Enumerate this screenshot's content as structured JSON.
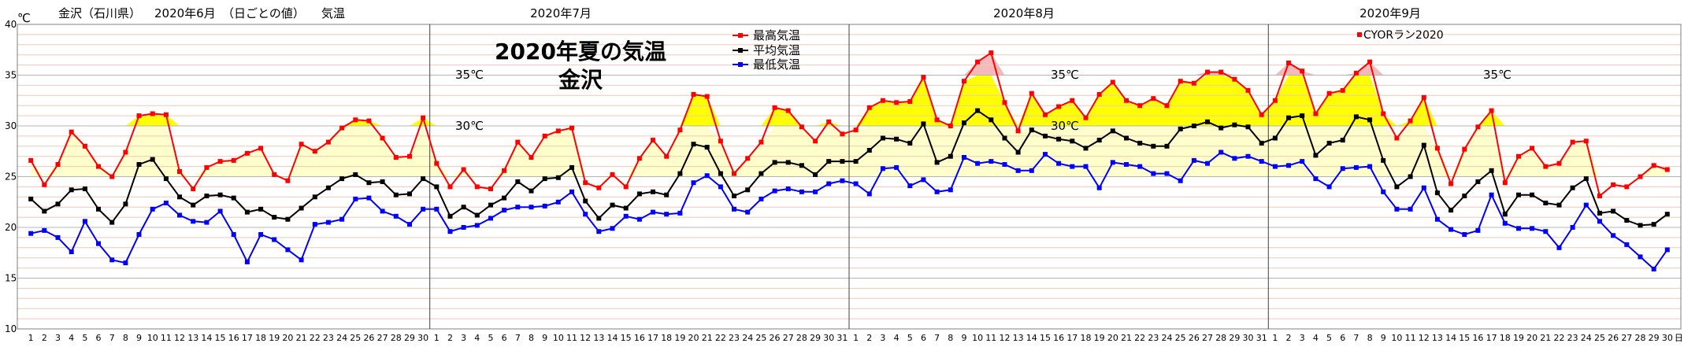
{
  "header": {
    "unit": "℃",
    "location": "金沢（石川県）",
    "month_label": "2020年6月",
    "daily_note": "（日ごとの値）",
    "metric": "気温"
  },
  "month_labels": [
    "2020年7月",
    "2020年8月",
    "2020年9月"
  ],
  "title": {
    "line1": "2020年夏の気温",
    "line2": "金沢"
  },
  "marks": {
    "m35a": "35℃",
    "m30a": "30℃",
    "m35b": "35℃",
    "m30b": "30℃",
    "m35c": "35℃"
  },
  "legend": {
    "max": "最高気温",
    "avg": "平均気温",
    "min": "最低気温",
    "credit": "CYORラン2020"
  },
  "day_suffix": "日",
  "colors": {
    "max": "#ff0000",
    "avg": "#000000",
    "min": "#0000ff",
    "fill_pale": "#ffffcc",
    "fill_yellow": "#ffff00",
    "fill_pink": "#f4b9b9",
    "minor_grid": "#f0c8b4",
    "major_grid": "#b4b4b4"
  },
  "chart_data": {
    "type": "line",
    "x_unit": "day",
    "months": [
      {
        "name": "2020年6月",
        "days": 30
      },
      {
        "name": "2020年7月",
        "days": 31
      },
      {
        "name": "2020年8月",
        "days": 31
      },
      {
        "name": "2020年9月",
        "days": 30
      }
    ],
    "ylim": [
      10,
      40
    ],
    "yticks": [
      10,
      15,
      20,
      25,
      30,
      35,
      40
    ],
    "series": [
      {
        "name": "最高気温",
        "key": "max",
        "values": [
          26.6,
          24.2,
          26.2,
          29.4,
          28.0,
          26.0,
          25.0,
          27.4,
          31.0,
          31.2,
          31.1,
          25.5,
          23.8,
          25.9,
          26.5,
          26.6,
          27.3,
          27.8,
          25.2,
          24.6,
          28.2,
          27.5,
          28.4,
          29.8,
          30.6,
          30.5,
          28.8,
          26.9,
          27.0,
          30.8,
          26.3,
          24.0,
          25.7,
          24.0,
          23.8,
          25.6,
          28.4,
          26.9,
          29.0,
          29.5,
          29.8,
          24.4,
          23.9,
          25.2,
          24.0,
          26.8,
          28.6,
          27.0,
          29.6,
          33.1,
          32.9,
          28.5,
          25.3,
          26.8,
          28.4,
          31.8,
          31.5,
          29.9,
          28.5,
          30.4,
          29.2,
          29.6,
          31.8,
          32.5,
          32.3,
          32.4,
          34.8,
          30.6,
          30.0,
          34.4,
          36.3,
          37.2,
          32.3,
          29.5,
          33.2,
          31.1,
          31.9,
          32.5,
          30.8,
          33.1,
          34.3,
          32.5,
          32.0,
          32.7,
          32.0,
          34.4,
          34.2,
          35.3,
          35.3,
          34.6,
          33.5,
          31.1,
          32.5,
          36.2,
          35.4,
          31.2,
          33.2,
          33.5,
          35.2,
          36.3,
          31.2,
          28.8,
          30.5,
          32.8,
          27.8,
          24.3,
          27.7,
          29.9,
          31.5,
          24.4,
          27.0,
          27.8,
          26.0,
          26.3,
          28.4,
          28.5,
          23.1,
          24.2,
          24.0,
          25.0,
          26.1,
          25.7
        ]
      },
      {
        "name": "平均気温",
        "key": "avg",
        "values": [
          22.8,
          21.6,
          22.3,
          23.7,
          23.8,
          21.8,
          20.5,
          22.3,
          26.2,
          26.7,
          24.8,
          23.0,
          22.2,
          23.1,
          23.2,
          22.9,
          21.5,
          21.8,
          21.0,
          20.8,
          21.9,
          23.0,
          23.9,
          24.8,
          25.2,
          24.4,
          24.5,
          23.2,
          23.3,
          24.8,
          24.0,
          21.1,
          22.0,
          21.2,
          22.2,
          22.9,
          24.5,
          23.6,
          24.8,
          24.9,
          25.9,
          22.6,
          20.9,
          22.2,
          21.9,
          23.3,
          23.5,
          23.2,
          25.3,
          28.2,
          27.9,
          25.3,
          23.1,
          23.7,
          25.3,
          26.4,
          26.4,
          26.1,
          25.2,
          26.5,
          26.5,
          26.5,
          27.6,
          28.8,
          28.7,
          28.3,
          30.2,
          26.4,
          27.0,
          30.3,
          31.5,
          30.6,
          28.8,
          27.4,
          29.6,
          29.0,
          28.7,
          28.5,
          27.8,
          28.6,
          29.5,
          28.8,
          28.3,
          28.0,
          28.0,
          29.7,
          30.0,
          30.4,
          29.8,
          30.1,
          29.9,
          28.3,
          28.8,
          30.8,
          31.0,
          27.1,
          28.3,
          28.6,
          30.9,
          30.6,
          26.6,
          24.0,
          25.0,
          28.1,
          23.4,
          21.7,
          23.1,
          24.5,
          25.6,
          21.3,
          23.2,
          23.2,
          22.4,
          22.2,
          23.9,
          24.8,
          21.4,
          21.6,
          20.7,
          20.2,
          20.3,
          21.3
        ]
      },
      {
        "name": "最低気温",
        "key": "min",
        "values": [
          19.4,
          19.7,
          19.0,
          17.6,
          20.6,
          18.4,
          16.8,
          16.5,
          19.3,
          21.8,
          22.4,
          21.2,
          20.6,
          20.5,
          21.6,
          19.3,
          16.6,
          19.3,
          18.8,
          17.8,
          16.8,
          20.3,
          20.5,
          20.8,
          22.8,
          22.9,
          21.6,
          21.1,
          20.3,
          21.8,
          21.8,
          19.6,
          20.0,
          20.2,
          20.9,
          21.7,
          22.0,
          22.0,
          22.1,
          22.5,
          23.5,
          21.3,
          19.6,
          19.9,
          21.1,
          20.8,
          21.5,
          21.3,
          21.4,
          24.4,
          25.1,
          24.0,
          21.8,
          21.5,
          22.8,
          23.6,
          23.8,
          23.5,
          23.5,
          24.3,
          24.6,
          24.3,
          23.3,
          25.8,
          25.9,
          24.1,
          24.7,
          23.5,
          23.7,
          26.9,
          26.3,
          26.5,
          26.2,
          25.6,
          25.6,
          27.2,
          26.3,
          26.0,
          26.0,
          23.9,
          26.4,
          26.2,
          26.0,
          25.3,
          25.3,
          24.6,
          26.6,
          26.3,
          27.4,
          26.8,
          27.0,
          26.5,
          26.0,
          26.1,
          26.5,
          24.8,
          24.0,
          25.8,
          25.9,
          26.0,
          23.5,
          21.8,
          21.8,
          23.9,
          20.8,
          19.8,
          19.3,
          19.7,
          23.2,
          20.4,
          19.9,
          19.9,
          19.6,
          18.0,
          20.0,
          22.2,
          20.6,
          19.2,
          18.3,
          17.1,
          15.9,
          17.8
        ]
      }
    ],
    "bands": [
      25,
      30,
      35
    ]
  }
}
